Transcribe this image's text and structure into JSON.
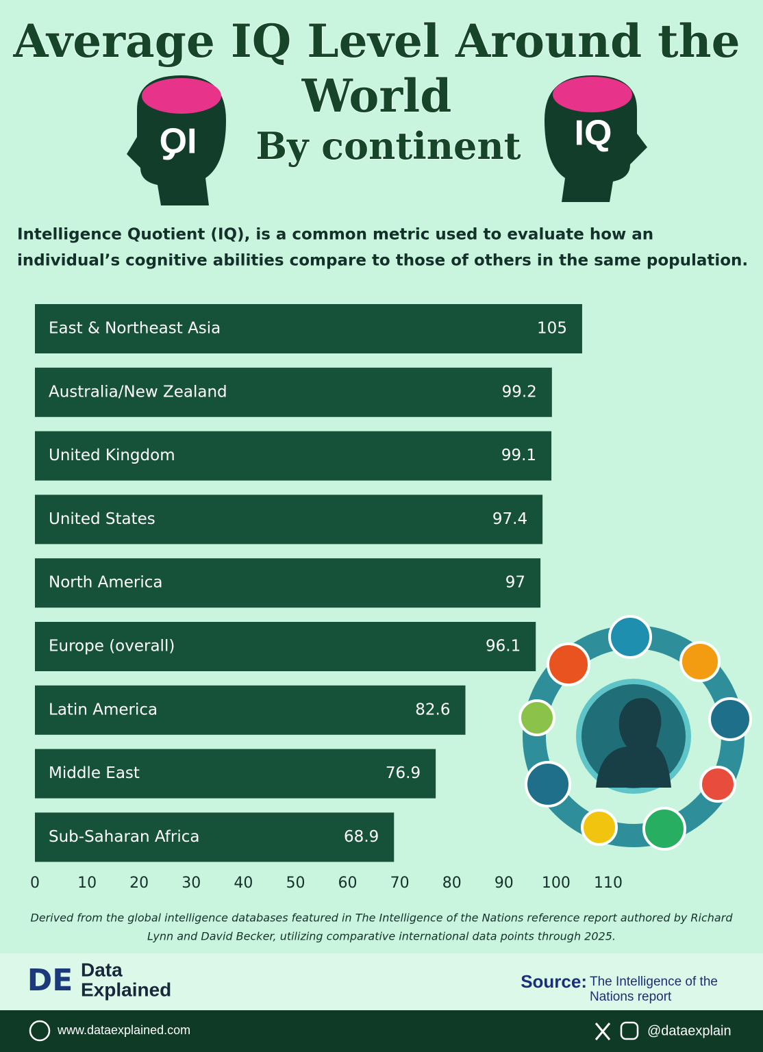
{
  "header": {
    "title_lines": [
      "Average IQ Level Around the",
      "World"
    ],
    "subtitle": "By continent",
    "head_label": "IQ",
    "description": [
      "Intelligence Quotient (IQ), is a common metric used to evaluate how an",
      "individual’s cognitive abilities compare to those of others in the same population."
    ]
  },
  "chart_data": {
    "type": "bar",
    "orientation": "horizontal",
    "categories": [
      "East & Northeast Asia",
      "Australia/New Zealand",
      "United Kingdom",
      "United States",
      "North America",
      "Europe (overall)",
      "Latin America",
      "Middle East",
      "Sub-Saharan Africa"
    ],
    "values": [
      105,
      99.2,
      99.1,
      97.4,
      97,
      96.1,
      82.6,
      76.9,
      68.9
    ],
    "color": "#16523a",
    "xlim": [
      0,
      110
    ],
    "xticks": [
      0,
      10,
      20,
      30,
      40,
      50,
      60,
      70,
      80,
      90,
      100,
      110
    ],
    "grid": false
  },
  "footnote": [
    "Derived from the global intelligence databases featured in The Intelligence of the Nations reference report authored by Richard",
    "Lynn and David Becker, utilizing comparative international data points through 2025."
  ],
  "footer": {
    "logo_mark": "DE",
    "brand_lines": [
      "Data",
      "Explained"
    ],
    "source_label": "Source:",
    "source_lines": [
      "The Intelligence of the",
      "Nations report"
    ],
    "website": "www.dataexplained.com",
    "handle": "@dataexplain"
  }
}
